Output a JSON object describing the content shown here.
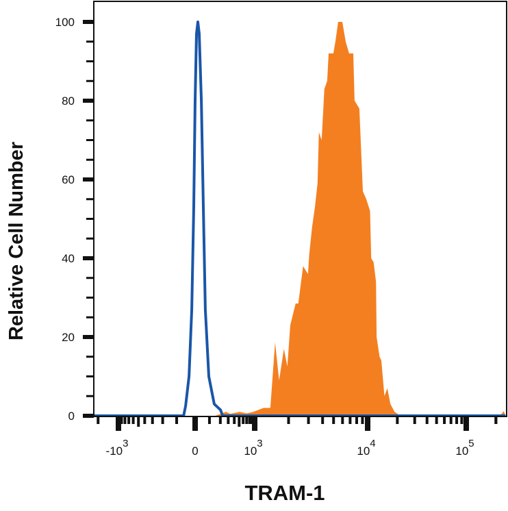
{
  "chart_data": {
    "type": "area",
    "title": "",
    "xlabel": "TRAM-1",
    "ylabel": "Relative Cell Number",
    "xscale": "logicle (biexponential)",
    "xlim": [
      -2300,
      250000
    ],
    "ylim": [
      0,
      100
    ],
    "grid": false,
    "legend": "none",
    "y_ticks": [
      {
        "value": 0,
        "label": "0"
      },
      {
        "value": 20,
        "label": "20"
      },
      {
        "value": 40,
        "label": "40"
      },
      {
        "value": 60,
        "label": "60"
      },
      {
        "value": 80,
        "label": "80"
      },
      {
        "value": 100,
        "label": "100"
      }
    ],
    "x_ticks": [
      {
        "value": -1000,
        "base": "-10",
        "exp": "3"
      },
      {
        "value": 0,
        "base": "0",
        "exp": ""
      },
      {
        "value": 1000,
        "base": "10",
        "exp": "3"
      },
      {
        "value": 10000,
        "base": "10",
        "exp": "4"
      },
      {
        "value": 100000,
        "base": "10",
        "exp": "5"
      }
    ],
    "series": [
      {
        "style": "filled",
        "color": "#f47f20",
        "points": [
          [
            -2300,
            0
          ],
          [
            150,
            0
          ],
          [
            268,
            1
          ],
          [
            330,
            0.5
          ],
          [
            512,
            1
          ],
          [
            700,
            0.6
          ],
          [
            942,
            1
          ],
          [
            1200,
            2
          ],
          [
            1380,
            2
          ],
          [
            1520,
            18.6
          ],
          [
            1650,
            9
          ],
          [
            1820,
            17
          ],
          [
            1950,
            12.5
          ],
          [
            2070,
            23
          ],
          [
            2310,
            28.5
          ],
          [
            2440,
            28.5
          ],
          [
            2690,
            38
          ],
          [
            2970,
            36
          ],
          [
            3050,
            41
          ],
          [
            3230,
            48
          ],
          [
            3420,
            53
          ],
          [
            3610,
            59
          ],
          [
            3710,
            72
          ],
          [
            3920,
            70
          ],
          [
            4150,
            83
          ],
          [
            4390,
            85
          ],
          [
            4520,
            92
          ],
          [
            4980,
            92
          ],
          [
            5190,
            95
          ],
          [
            5490,
            100
          ],
          [
            5970,
            100
          ],
          [
            6400,
            95
          ],
          [
            6860,
            92
          ],
          [
            7460,
            92
          ],
          [
            7670,
            80
          ],
          [
            8450,
            78
          ],
          [
            9070,
            57
          ],
          [
            9730,
            55
          ],
          [
            10570,
            52
          ],
          [
            10870,
            40
          ],
          [
            11500,
            39
          ],
          [
            12160,
            34
          ],
          [
            12330,
            20
          ],
          [
            13210,
            15
          ],
          [
            13770,
            14
          ],
          [
            14790,
            5
          ],
          [
            15850,
            7
          ],
          [
            17000,
            3
          ],
          [
            18750,
            1
          ],
          [
            21540,
            0
          ],
          [
            220000,
            0
          ],
          [
            240000,
            1.2
          ],
          [
            250000,
            0
          ]
        ]
      },
      {
        "style": "line",
        "color": "#1a56a8",
        "points": [
          [
            -2300,
            0
          ],
          [
            -60,
            0
          ],
          [
            -49,
            2.5
          ],
          [
            -31,
            10
          ],
          [
            -17,
            27
          ],
          [
            -7,
            53
          ],
          [
            0,
            80
          ],
          [
            9,
            97
          ],
          [
            18,
            100
          ],
          [
            27,
            97
          ],
          [
            41,
            80
          ],
          [
            55,
            53
          ],
          [
            69,
            27
          ],
          [
            95,
            10
          ],
          [
            140,
            3
          ],
          [
            202,
            1.5
          ],
          [
            226,
            0
          ],
          [
            250000,
            0
          ]
        ]
      }
    ]
  }
}
